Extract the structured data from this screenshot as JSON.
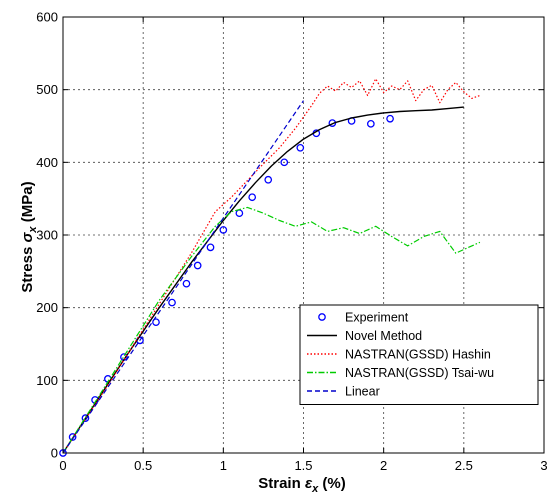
{
  "chart_data": {
    "type": "line",
    "title": "",
    "xlabel": "Strain ε_x (%)",
    "xlabel_parts": {
      "prefix": "Strain",
      "symbol": "ε",
      "sub": "x",
      "suffix": "(%)"
    },
    "ylabel": "Stress σ_x (MPa)",
    "ylabel_parts": {
      "prefix": "Stress",
      "symbol": "σ",
      "sub": "x",
      "suffix": "(MPa)"
    },
    "xlim": [
      0,
      3
    ],
    "ylim": [
      0,
      600
    ],
    "xticks": [
      "0",
      "0.5",
      "1",
      "1.5",
      "2",
      "2.5",
      "3"
    ],
    "yticks": [
      "0",
      "100",
      "200",
      "300",
      "400",
      "500",
      "600"
    ],
    "grid": true,
    "grid_style": "dotted",
    "legend_position": "lower-right",
    "series": [
      {
        "name": "Experiment",
        "style": "markers",
        "marker": "circle",
        "color": "#0000ff",
        "x": [
          0.0,
          0.06,
          0.14,
          0.2,
          0.28,
          0.38,
          0.48,
          0.58,
          0.68,
          0.77,
          0.84,
          0.92,
          1.0,
          1.1,
          1.18,
          1.28,
          1.38,
          1.48,
          1.58,
          1.68,
          1.8,
          1.92,
          2.04
        ],
        "y": [
          0,
          22,
          48,
          73,
          102,
          132,
          155,
          180,
          207,
          233,
          258,
          283,
          307,
          330,
          352,
          376,
          400,
          420,
          440,
          454,
          457,
          453,
          460
        ]
      },
      {
        "name": "Novel Method",
        "style": "solid",
        "color": "#000000",
        "x": [
          0.0,
          0.2,
          0.4,
          0.6,
          0.8,
          1.0,
          1.1,
          1.2,
          1.3,
          1.4,
          1.5,
          1.6,
          1.7,
          1.8,
          1.9,
          2.0,
          2.1,
          2.2,
          2.3,
          2.4,
          2.5
        ],
        "y": [
          0,
          68,
          135,
          200,
          262,
          320,
          347,
          372,
          395,
          415,
          432,
          445,
          455,
          461,
          465,
          468,
          470,
          471,
          472,
          474,
          476
        ]
      },
      {
        "name": "NASTRAN(GSSD) Hashin",
        "style": "dotted",
        "color": "#ff0000",
        "x": [
          0.0,
          0.3,
          0.6,
          0.8,
          0.95,
          1.05,
          1.15,
          1.25,
          1.35,
          1.45,
          1.55,
          1.6,
          1.65,
          1.7,
          1.75,
          1.8,
          1.85,
          1.9,
          1.95,
          2.0,
          2.05,
          2.1,
          2.15,
          2.2,
          2.25,
          2.3,
          2.35,
          2.4,
          2.45,
          2.5,
          2.55,
          2.6
        ],
        "y": [
          0,
          100,
          205,
          275,
          332,
          352,
          375,
          398,
          420,
          447,
          478,
          495,
          505,
          498,
          510,
          503,
          512,
          492,
          515,
          496,
          505,
          500,
          512,
          485,
          500,
          506,
          482,
          500,
          510,
          497,
          488,
          492
        ]
      },
      {
        "name": "NASTRAN(GSSD) Tsai-wu",
        "style": "dashdot",
        "color": "#00cc00",
        "x": [
          0.0,
          0.2,
          0.4,
          0.6,
          0.8,
          0.95,
          1.05,
          1.15,
          1.25,
          1.35,
          1.45,
          1.55,
          1.65,
          1.75,
          1.85,
          1.95,
          2.05,
          2.15,
          2.25,
          2.35,
          2.45,
          2.5,
          2.6
        ],
        "y": [
          0,
          70,
          140,
          210,
          270,
          312,
          332,
          338,
          330,
          320,
          312,
          318,
          305,
          310,
          302,
          312,
          298,
          285,
          298,
          305,
          275,
          280,
          290
        ]
      },
      {
        "name": "Linear",
        "style": "dashed",
        "color": "#0000cc",
        "x": [
          0.0,
          1.5
        ],
        "y": [
          0,
          485
        ]
      }
    ]
  }
}
